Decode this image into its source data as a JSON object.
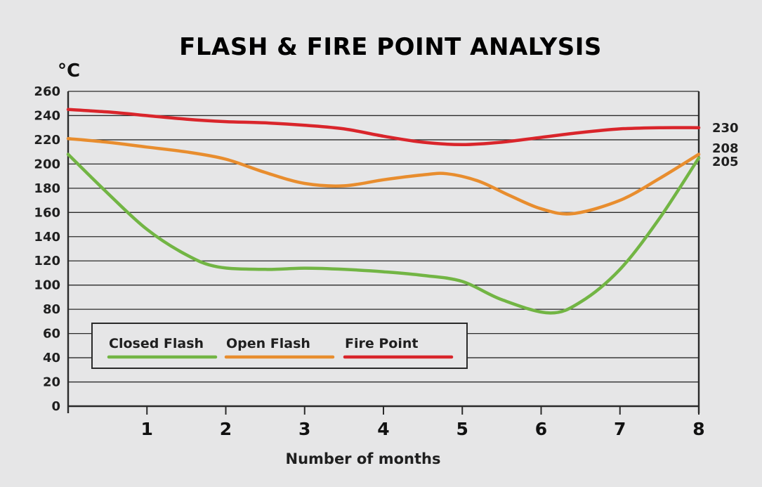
{
  "chart_data": {
    "type": "line",
    "title": "FLASH & FIRE POINT ANALYSIS",
    "ylabel": "°C",
    "xlabel": "Number of months",
    "x": [
      0,
      1,
      2,
      3,
      4,
      5,
      6,
      7,
      8
    ],
    "x_ticks": [
      "1",
      "2",
      "3",
      "4",
      "5",
      "6",
      "7",
      "8"
    ],
    "x_tick_values": [
      1,
      2,
      3,
      4,
      5,
      6,
      7,
      8
    ],
    "y_ticks": [
      "0",
      "20",
      "40",
      "60",
      "80",
      "100",
      "120",
      "140",
      "160",
      "180",
      "200",
      "220",
      "240",
      "260"
    ],
    "y_tick_values": [
      0,
      20,
      40,
      60,
      80,
      100,
      120,
      140,
      160,
      180,
      200,
      220,
      240,
      260
    ],
    "xlim": [
      0,
      8
    ],
    "ylim": [
      0,
      260
    ],
    "grid": "horizontal",
    "legend_position": "bottom-left",
    "series": [
      {
        "name": "Closed Flash",
        "color": "#72b544",
        "x": [
          0,
          0.5,
          1,
          1.5,
          1.9,
          2.5,
          3,
          3.5,
          4,
          4.5,
          5,
          5.5,
          6.1,
          6.5,
          7,
          7.5,
          8
        ],
        "y": [
          208,
          176,
          146,
          125,
          115,
          113,
          114,
          113,
          111,
          108,
          103,
          88,
          77,
          86,
          113,
          155,
          205
        ],
        "end_label": "205"
      },
      {
        "name": "Open Flash",
        "color": "#e88d2e",
        "x": [
          0,
          0.5,
          1,
          1.5,
          2,
          2.5,
          3,
          3.5,
          4,
          4.5,
          4.8,
          5.2,
          5.6,
          6,
          6.4,
          7,
          7.5,
          8
        ],
        "y": [
          221,
          218,
          214,
          210,
          204,
          193,
          184,
          182,
          187,
          191,
          192,
          186,
          174,
          163,
          159,
          170,
          188,
          208
        ],
        "end_label": "208"
      },
      {
        "name": "Fire Point",
        "color": "#d9252b",
        "x": [
          0,
          0.5,
          1,
          1.5,
          2,
          2.5,
          3,
          3.5,
          4,
          4.5,
          5,
          5.5,
          6,
          6.5,
          7,
          7.5,
          8
        ],
        "y": [
          245,
          243,
          240,
          237,
          235,
          234,
          232,
          229,
          223,
          218,
          216,
          218,
          222,
          226,
          229,
          230,
          230
        ],
        "end_label": "230"
      }
    ]
  }
}
